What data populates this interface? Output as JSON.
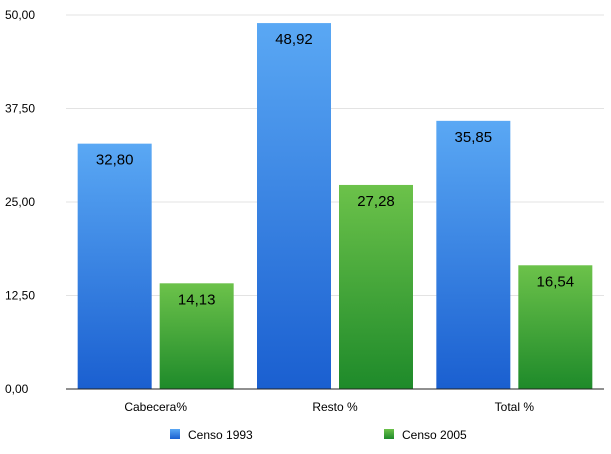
{
  "chart_data": {
    "type": "bar",
    "categories": [
      "Cabecera%",
      "Resto %",
      "Total %"
    ],
    "series": [
      {
        "name": "Censo 1993",
        "values": [
          32.8,
          48.92,
          35.85
        ],
        "labels": [
          "32,80",
          "48,92",
          "35,85"
        ],
        "color_top": "#5aa8f4",
        "color_bottom": "#1a5fd0"
      },
      {
        "name": "Censo 2005",
        "values": [
          14.13,
          27.28,
          16.54
        ],
        "labels": [
          "14,13",
          "27,28",
          "16,54"
        ],
        "color_top": "#6cc24a",
        "color_bottom": "#1e8a2a"
      }
    ],
    "ylim": [
      0,
      50
    ],
    "yticks": [
      0,
      12.5,
      25,
      37.5,
      50
    ],
    "ytick_labels": [
      "0,00",
      "12,50",
      "25,00",
      "37,50",
      "50,00"
    ],
    "grid": true,
    "legend_position": "bottom-center",
    "title": "",
    "xlabel": "",
    "ylabel": ""
  }
}
